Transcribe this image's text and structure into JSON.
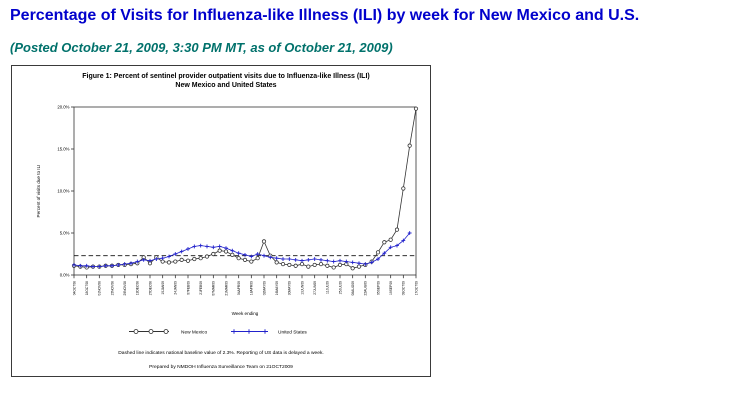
{
  "page": {
    "title": "Percentage of Visits for Influenza-like Illness (ILI) by week for New Mexico and U.S.",
    "subtitle": "(Posted October 21, 2009, 3:30 PM MT, as of October 21, 2009)"
  },
  "figure": {
    "title_line1": "Figure 1: Percent of sentinel provider outpatient visits due to Influenza-like Illness (ILI)",
    "title_line2": "New Mexico and United States",
    "footnote1": "Dashed line indicates national baseline value of 2.3%. Reporting of US data is delayed a week.",
    "footnote2": "Prepared by NMDOH Influenza Surveillance Team on 21OCT2009"
  },
  "chart_data": {
    "type": "line",
    "title": "Figure 1: Percent of sentinel provider outpatient visits due to Influenza-like Illness (ILI) New Mexico and United States",
    "xlabel": "Week ending",
    "ylabel": "Percent of visits due to ILI",
    "ylim": [
      0,
      20
    ],
    "yticks": [
      0,
      5,
      10,
      15,
      20
    ],
    "ytick_labels": [
      "0.0%",
      "5.0%",
      "10.0%",
      "15.0%",
      "20.0%"
    ],
    "x_tick_every": 2,
    "grid": false,
    "legend_position": "bottom",
    "baseline": {
      "value": 2.3,
      "style": "dashed",
      "note": "national baseline value of 2.3%"
    },
    "x": [
      "04OCT08",
      "11OCT08",
      "18OCT08",
      "25OCT08",
      "01NOV08",
      "08NOV08",
      "15NOV08",
      "22NOV08",
      "29NOV08",
      "06DEC08",
      "13DEC08",
      "20DEC08",
      "27DEC08",
      "03JAN09",
      "10JAN09",
      "17JAN09",
      "24JAN09",
      "31JAN09",
      "07FEB09",
      "14FEB09",
      "21FEB09",
      "28FEB09",
      "07MAR09",
      "14MAR09",
      "21MAR09",
      "28MAR09",
      "04APR09",
      "11APR09",
      "18APR09",
      "25APR09",
      "02MAY09",
      "09MAY09",
      "16MAY09",
      "23MAY09",
      "30MAY09",
      "06JUN09",
      "13JUN09",
      "20JUN09",
      "27JUN09",
      "04JUL09",
      "11JUL09",
      "18JUL09",
      "25JUL09",
      "01AUG09",
      "08AUG09",
      "15AUG09",
      "22AUG09",
      "29AUG09",
      "05SEP09",
      "12SEP09",
      "19SEP09",
      "26SEP09",
      "03OCT09",
      "10OCT09",
      "17OCT09"
    ],
    "series": [
      {
        "name": "New Mexico",
        "color": "#333333",
        "marker": "circle",
        "values": [
          1.1,
          1.0,
          0.9,
          1.0,
          1.0,
          1.1,
          1.1,
          1.2,
          1.2,
          1.3,
          1.4,
          2.1,
          1.4,
          2.1,
          1.6,
          1.5,
          1.6,
          1.8,
          1.7,
          1.9,
          2.0,
          2.2,
          2.5,
          2.9,
          2.8,
          2.4,
          2.0,
          1.8,
          1.6,
          2.0,
          4.0,
          2.3,
          1.5,
          1.3,
          1.2,
          1.1,
          1.3,
          1.0,
          1.2,
          1.3,
          1.1,
          0.9,
          1.2,
          1.3,
          0.8,
          1.0,
          1.2,
          1.6,
          2.7,
          3.9,
          4.2,
          5.4,
          10.3,
          15.4,
          19.8
        ]
      },
      {
        "name": "United States",
        "color": "#2222CC",
        "marker": "plus",
        "values": [
          1.2,
          1.1,
          1.1,
          1.0,
          1.0,
          1.1,
          1.1,
          1.2,
          1.3,
          1.4,
          1.6,
          1.8,
          1.7,
          1.9,
          2.0,
          2.2,
          2.5,
          2.8,
          3.1,
          3.4,
          3.5,
          3.4,
          3.3,
          3.4,
          3.2,
          2.9,
          2.6,
          2.4,
          2.2,
          2.5,
          2.3,
          2.1,
          2.0,
          1.9,
          1.9,
          1.8,
          1.7,
          1.8,
          1.9,
          1.8,
          1.7,
          1.6,
          1.7,
          1.6,
          1.5,
          1.4,
          1.3,
          1.5,
          1.9,
          2.6,
          3.3,
          3.5,
          4.1,
          5.0
        ]
      }
    ]
  }
}
